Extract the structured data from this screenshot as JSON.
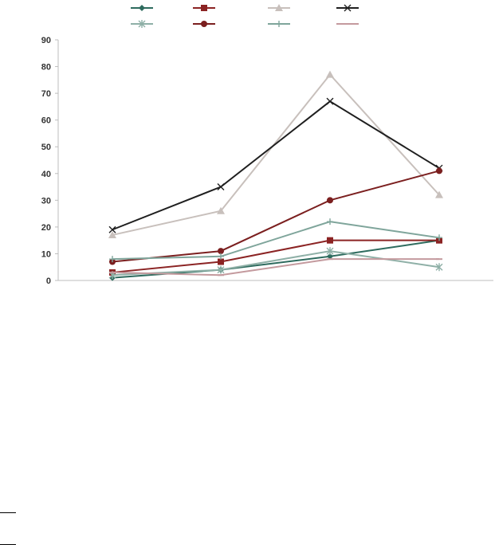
{
  "chart_data": {
    "type": "line",
    "title": "",
    "xlabel": "",
    "ylabel": "",
    "categories": [
      "",
      "",
      "",
      ""
    ],
    "ylim": [
      0,
      90
    ],
    "yticks": [
      0,
      10,
      20,
      30,
      40,
      50,
      60,
      70,
      80,
      90
    ],
    "grid": false,
    "legend_position": "top",
    "series": [
      {
        "color": "#2e6b5e",
        "marker": "diamond",
        "values": [
          1,
          4,
          9,
          15
        ]
      },
      {
        "color": "#8b2323",
        "marker": "square",
        "values": [
          3,
          7,
          15,
          15
        ]
      },
      {
        "color": "#c8c0bc",
        "marker": "triangle",
        "values": [
          17,
          26,
          77,
          32
        ]
      },
      {
        "color": "#1f1f1f",
        "marker": "x",
        "values": [
          19,
          35,
          67,
          42
        ]
      },
      {
        "color": "#8fb0a7",
        "marker": "asterisk",
        "values": [
          2,
          4,
          11,
          5
        ]
      },
      {
        "color": "#7b1f1f",
        "marker": "circle",
        "values": [
          7,
          11,
          30,
          41
        ]
      },
      {
        "color": "#7fa59b",
        "marker": "plus",
        "values": [
          8,
          9,
          22,
          16
        ]
      },
      {
        "color": "#c49a9e",
        "marker": "dash",
        "values": [
          3,
          2,
          8,
          8
        ]
      }
    ]
  }
}
